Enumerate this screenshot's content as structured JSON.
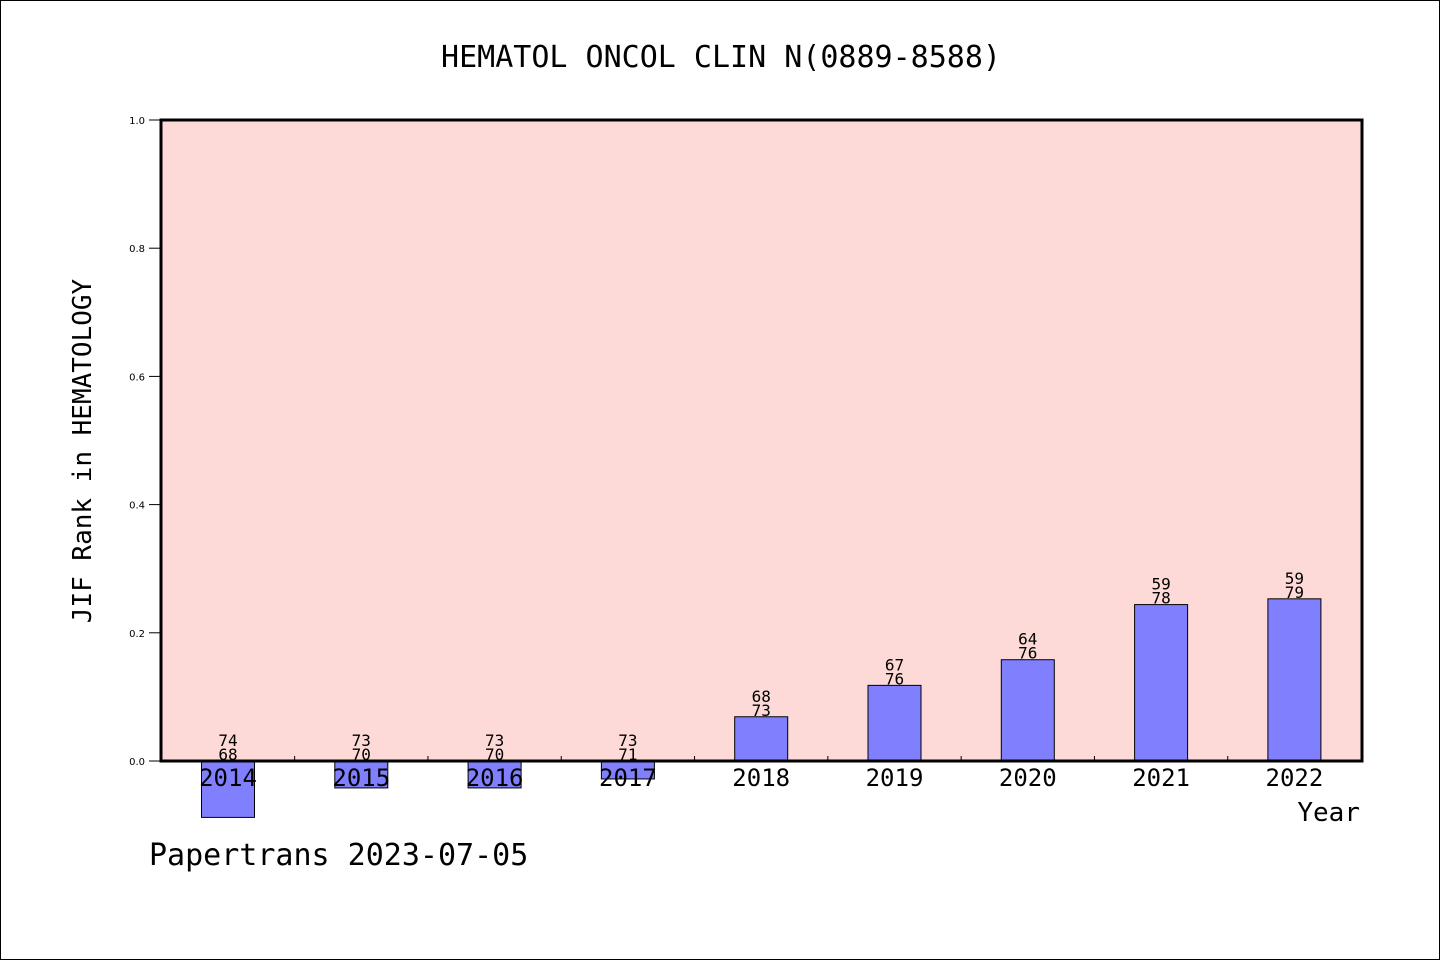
{
  "chart_data": {
    "type": "bar",
    "title": "HEMATOL ONCOL CLIN N(0889-8588)",
    "xlabel": "Year",
    "ylabel": "JIF Rank in HEMATOLOGY",
    "ylim": [
      0.0,
      1.0
    ],
    "yticks": [
      "0.0",
      "0.2",
      "0.4",
      "0.6",
      "0.8",
      "1.0"
    ],
    "grid": false,
    "categories": [
      "2014",
      "2015",
      "2016",
      "2017",
      "2018",
      "2019",
      "2020",
      "2021",
      "2022"
    ],
    "values": [
      -0.088,
      -0.042,
      -0.042,
      -0.028,
      0.069,
      0.118,
      0.158,
      0.244,
      0.253
    ],
    "bar_labels": [
      {
        "top": "74",
        "bottom": "68"
      },
      {
        "top": "73",
        "bottom": "70"
      },
      {
        "top": "73",
        "bottom": "70"
      },
      {
        "top": "73",
        "bottom": "71"
      },
      {
        "top": "68",
        "bottom": "73"
      },
      {
        "top": "67",
        "bottom": "76"
      },
      {
        "top": "64",
        "bottom": "76"
      },
      {
        "top": "59",
        "bottom": "78"
      },
      {
        "top": "59",
        "bottom": "79"
      }
    ]
  },
  "footer": "Papertrans 2023-07-05",
  "colors": {
    "plot_background": "#FDDAD7",
    "bar_fill": "#8080FF",
    "axis": "#000000"
  }
}
